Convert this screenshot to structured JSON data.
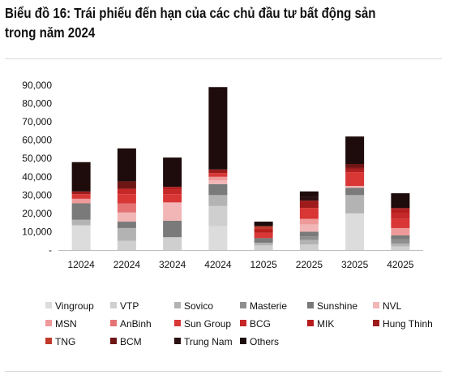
{
  "title_lines": [
    "Biểu đồ 16: Trái phiếu đến hạn của các chủ đầu tư bất động sản",
    "trong năm 2024"
  ],
  "chart_data": {
    "type": "bar",
    "stacked": true,
    "title": "Biểu đồ 16: Trái phiếu đến hạn của các chủ đầu tư bất động sản trong năm 2024",
    "xlabel": "",
    "ylabel": "",
    "ylim": [
      0,
      90000
    ],
    "y_tick_labels": [
      "-",
      "10,000",
      "20,000",
      "30,000",
      "40,000",
      "50,000",
      "60,000",
      "70,000",
      "80,000",
      "90,000"
    ],
    "grid": false,
    "legend_position": "bottom",
    "categories": [
      "12024",
      "22024",
      "32024",
      "42024",
      "12025",
      "22025",
      "32025",
      "42025"
    ],
    "series": [
      {
        "name": "Vingroup",
        "color": "#dcdcdc",
        "values": [
          13500,
          0,
          0,
          13000,
          0,
          0,
          20000,
          0
        ]
      },
      {
        "name": "VTP",
        "color": "#cfcfcf",
        "values": [
          0,
          5000,
          7000,
          11000,
          2500,
          3000,
          0,
          2000
        ]
      },
      {
        "name": "Sovico",
        "color": "#b3b3b3",
        "values": [
          3000,
          7000,
          0,
          6000,
          1500,
          2500,
          10000,
          1500
        ]
      },
      {
        "name": "Masterie",
        "color": "#8f8f8f",
        "values": [
          0,
          0,
          0,
          0,
          0,
          2000,
          0,
          2500
        ]
      },
      {
        "name": "Sunshine",
        "color": "#7a7a7a",
        "values": [
          9000,
          3500,
          9000,
          6000,
          2500,
          2500,
          4000,
          2000
        ]
      },
      {
        "name": "NVL",
        "color": "#f2b6b6",
        "values": [
          0,
          5000,
          10000,
          2000,
          0,
          4000,
          1000,
          0
        ]
      },
      {
        "name": "MSN",
        "color": "#ee9a9a",
        "values": [
          2500,
          0,
          0,
          2000,
          0,
          3000,
          0,
          4000
        ]
      },
      {
        "name": "AnBinh",
        "color": "#e57373",
        "values": [
          0,
          5000,
          0,
          0,
          0,
          0,
          0,
          0
        ]
      },
      {
        "name": "Sun Group",
        "color": "#d93636",
        "values": [
          2500,
          5000,
          4500,
          2000,
          3000,
          6000,
          7500,
          5000
        ]
      },
      {
        "name": "BCG",
        "color": "#c62828",
        "values": [
          0,
          3000,
          2500,
          0,
          0,
          0,
          0,
          3000
        ]
      },
      {
        "name": "MIK",
        "color": "#b71c1c",
        "values": [
          0,
          0,
          1500,
          0,
          2000,
          0,
          1000,
          2000
        ]
      },
      {
        "name": "Hung Thinh",
        "color": "#9e1b1b",
        "values": [
          1500,
          0,
          0,
          2000,
          0,
          4000,
          1500,
          1000
        ]
      },
      {
        "name": "TNG",
        "color": "#c0392b",
        "values": [
          0,
          0,
          0,
          0,
          1500,
          0,
          0,
          0
        ]
      },
      {
        "name": "BCM",
        "color": "#6e1515",
        "values": [
          0,
          4000,
          0,
          0,
          0,
          0,
          2000,
          0
        ]
      },
      {
        "name": "Trung Nam",
        "color": "#2a1010",
        "values": [
          0,
          0,
          0,
          0,
          0,
          2000,
          0,
          0
        ]
      },
      {
        "name": "Others",
        "color": "#1e0b0b",
        "values": [
          16000,
          18000,
          16000,
          45000,
          2500,
          3000,
          15000,
          8000
        ]
      }
    ]
  }
}
